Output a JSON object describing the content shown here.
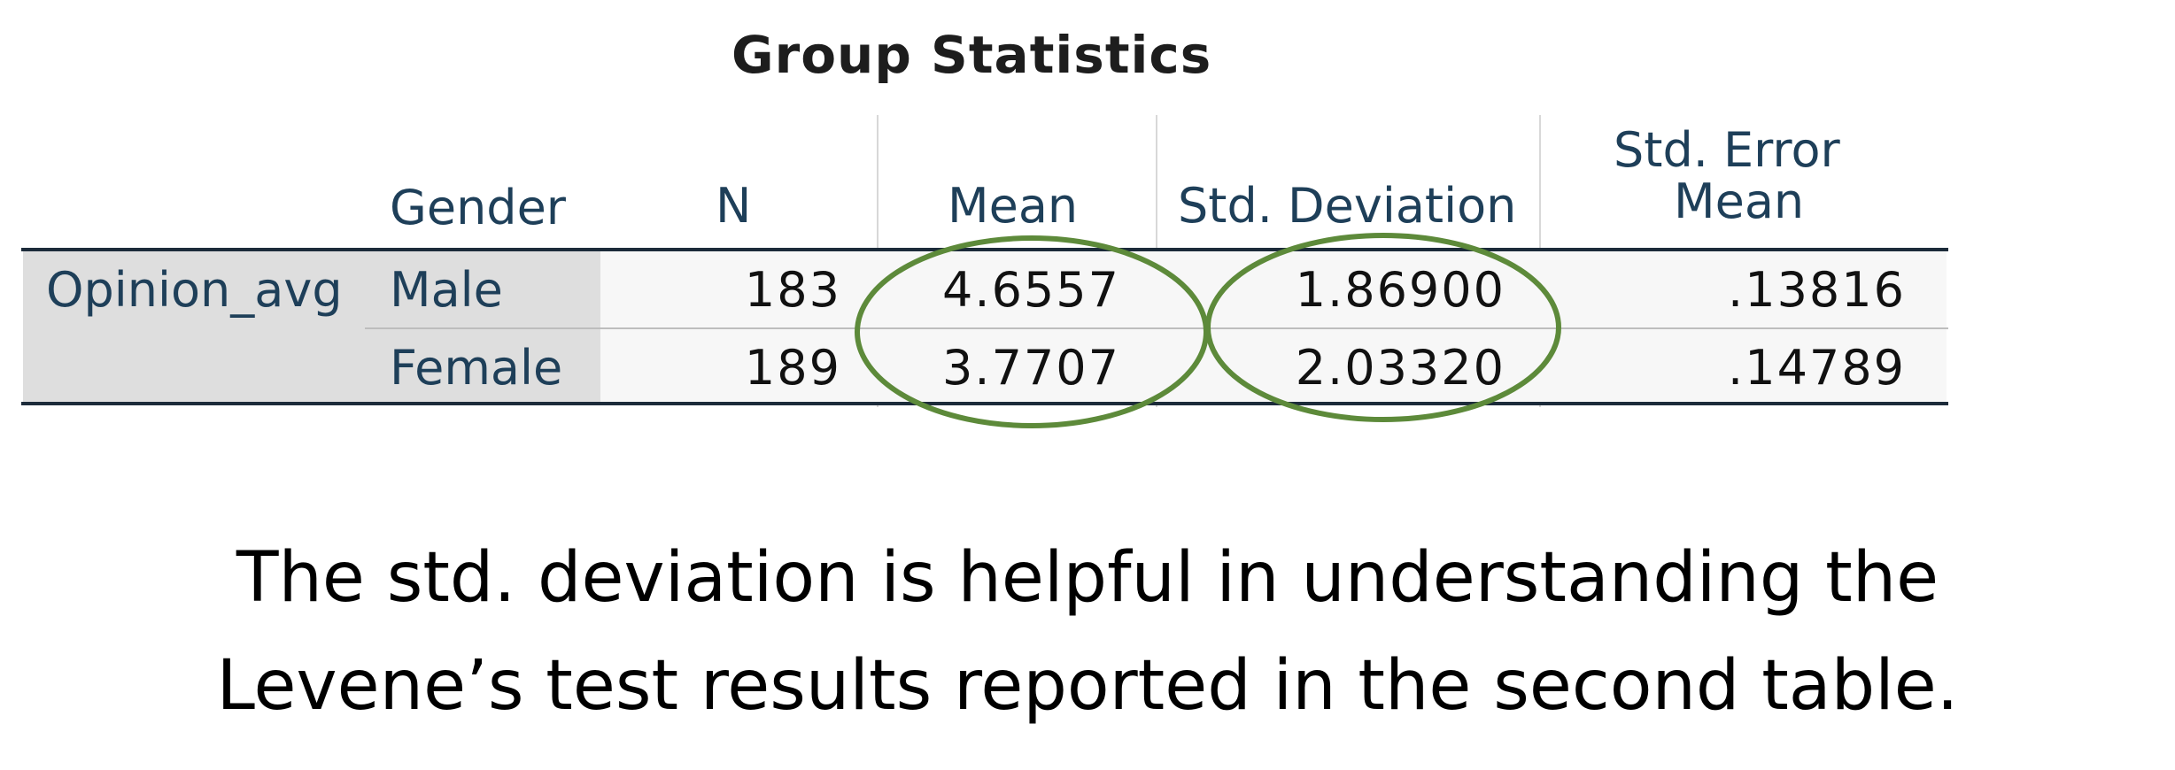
{
  "table": {
    "title": "Group Statistics",
    "headers": {
      "gender": "Gender",
      "n": "N",
      "mean": "Mean",
      "std_dev": "Std. Deviation",
      "std_err_line1": "Std. Error",
      "std_err_line2": "Mean"
    },
    "variable": "Opinion_avg",
    "rows": [
      {
        "gender": "Male",
        "n": "183",
        "mean": "4.6557",
        "std_dev": "1.86900",
        "std_err": ".13816"
      },
      {
        "gender": "Female",
        "n": "189",
        "mean": "3.7707",
        "std_dev": "2.03320",
        "std_err": ".14789"
      }
    ]
  },
  "annotation": {
    "highlight_color": "#5d8a3a",
    "highlighted_columns": [
      "Mean",
      "Std. Deviation"
    ]
  },
  "caption": {
    "line1": "The std. deviation is helpful in understanding the",
    "line2": "Levene’s test results reported in the second table."
  }
}
